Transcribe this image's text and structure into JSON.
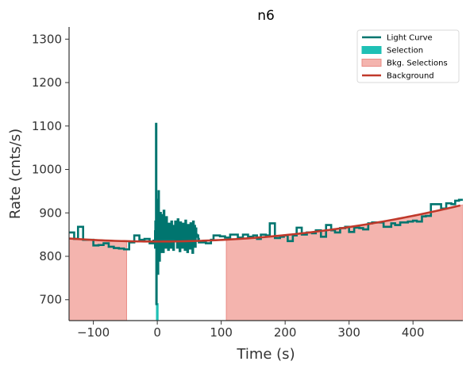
{
  "chart_data": {
    "type": "line",
    "title": "n6",
    "xlabel": "Time (s)",
    "ylabel": "Rate (cnts/s)",
    "xlim": [
      -138,
      478
    ],
    "ylim": [
      652,
      1328
    ],
    "xticks": [
      -100,
      0,
      100,
      200,
      300,
      400
    ],
    "yticks": [
      700,
      800,
      900,
      1000,
      1100,
      1200,
      1300
    ],
    "xtick_labels": [
      "−100",
      "0",
      "100",
      "200",
      "300",
      "400"
    ],
    "ytick_labels": [
      "700",
      "800",
      "900",
      "1000",
      "1100",
      "1200",
      "1300"
    ],
    "grid": false,
    "legend_position": "top-right",
    "legend": [
      {
        "label": "Light Curve",
        "kind": "line",
        "color": "#00756f"
      },
      {
        "label": "Selection",
        "kind": "patch",
        "color": "#1fc0b5"
      },
      {
        "label": "Bkg. Selections",
        "kind": "patch",
        "color": "#f4b4ae",
        "edge": "#e98d86"
      },
      {
        "label": "Background",
        "kind": "line",
        "color": "#c0392b"
      }
    ],
    "colors": {
      "light_curve": "#00756f",
      "selection": "#1fc0b5",
      "bkg_fill": "#f4b4ae",
      "bkg_edge": "#e98d86",
      "background": "#c0392b"
    },
    "background_model": {
      "type": "quadratic",
      "c0": 834,
      "c1": 0.0,
      "c2": 0.00037
    },
    "bkg_selections": [
      [
        -138,
        -48
      ],
      [
        108,
        478
      ]
    ],
    "selection": [
      -2,
      2
    ],
    "light_curve": {
      "steps": [
        [
          -138,
          855
        ],
        [
          -130,
          840
        ],
        [
          -124,
          868
        ],
        [
          -116,
          838
        ],
        [
          -108,
          838
        ],
        [
          -100,
          825
        ],
        [
          -92,
          826
        ],
        [
          -84,
          830
        ],
        [
          -76,
          822
        ],
        [
          -68,
          819
        ],
        [
          -60,
          818
        ],
        [
          -52,
          816
        ],
        [
          -44,
          832
        ],
        [
          -36,
          848
        ],
        [
          -28,
          838
        ],
        [
          -20,
          840
        ],
        [
          -12,
          830
        ],
        [
          -6,
          836
        ]
      ],
      "burst_x": [
        -3.5,
        -3,
        -2.5,
        -2,
        -1.5,
        -1,
        -0.5,
        0,
        0.5,
        1,
        1.5,
        2,
        2.5,
        3,
        3.5,
        4,
        4.5,
        5,
        5.5,
        6,
        6.5,
        7,
        7.5,
        8,
        9,
        10,
        11,
        12,
        13,
        14,
        15,
        16,
        17,
        18,
        19,
        20,
        21,
        22,
        23,
        24,
        25,
        26,
        27,
        28,
        29,
        30,
        31,
        32,
        33,
        34,
        35,
        36,
        37,
        38,
        39,
        40,
        41,
        42,
        43,
        44,
        45,
        46,
        47,
        48,
        49,
        50,
        51,
        52,
        53,
        54,
        55,
        56,
        57,
        58,
        59,
        60,
        61,
        62,
        63,
        64,
        65
      ],
      "burst_y": [
        860,
        820,
        880,
        840,
        1105,
        690,
        870,
        930,
        800,
        900,
        760,
        880,
        950,
        830,
        900,
        790,
        880,
        820,
        900,
        845,
        870,
        810,
        895,
        830,
        880,
        810,
        905,
        835,
        870,
        820,
        890,
        845,
        860,
        815,
        875,
        840,
        865,
        820,
        880,
        845,
        855,
        815,
        870,
        835,
        880,
        850,
        860,
        820,
        885,
        835,
        865,
        812,
        878,
        842,
        868,
        820,
        875,
        838,
        862,
        815,
        882,
        846,
        858,
        810,
        872,
        840,
        866,
        818,
        876,
        844,
        860,
        808,
        880,
        836,
        870,
        822,
        864,
        850,
        845,
        848,
        840
      ],
      "tail": [
        [
          65,
          832
        ],
        [
          70,
          832
        ],
        [
          76,
          830
        ],
        [
          84,
          838
        ],
        [
          88,
          848
        ],
        [
          98,
          846
        ],
        [
          106,
          843
        ],
        [
          114,
          850
        ],
        [
          120,
          850
        ],
        [
          126,
          843
        ],
        [
          134,
          850
        ],
        [
          142,
          845
        ],
        [
          150,
          848
        ],
        [
          156,
          840
        ],
        [
          162,
          850
        ],
        [
          170,
          848
        ],
        [
          176,
          876
        ],
        [
          184,
          842
        ],
        [
          192,
          845
        ],
        [
          198,
          848
        ],
        [
          204,
          835
        ],
        [
          212,
          848
        ],
        [
          218,
          866
        ],
        [
          226,
          850
        ],
        [
          234,
          855
        ],
        [
          242,
          853
        ],
        [
          248,
          860
        ],
        [
          256,
          845
        ],
        [
          264,
          872
        ],
        [
          272,
          860
        ],
        [
          278,
          855
        ],
        [
          286,
          865
        ],
        [
          294,
          868
        ],
        [
          300,
          856
        ],
        [
          308,
          866
        ],
        [
          316,
          865
        ],
        [
          322,
          862
        ],
        [
          330,
          876
        ],
        [
          336,
          878
        ],
        [
          346,
          878
        ],
        [
          354,
          868
        ],
        [
          360,
          868
        ],
        [
          366,
          876
        ],
        [
          372,
          872
        ],
        [
          380,
          878
        ],
        [
          386,
          878
        ],
        [
          392,
          880
        ],
        [
          400,
          882
        ],
        [
          406,
          880
        ],
        [
          414,
          892
        ],
        [
          420,
          893
        ],
        [
          428,
          920
        ],
        [
          444,
          910
        ],
        [
          452,
          922
        ],
        [
          460,
          920
        ],
        [
          466,
          928
        ],
        [
          472,
          930
        ],
        [
          478,
          930
        ]
      ]
    }
  }
}
